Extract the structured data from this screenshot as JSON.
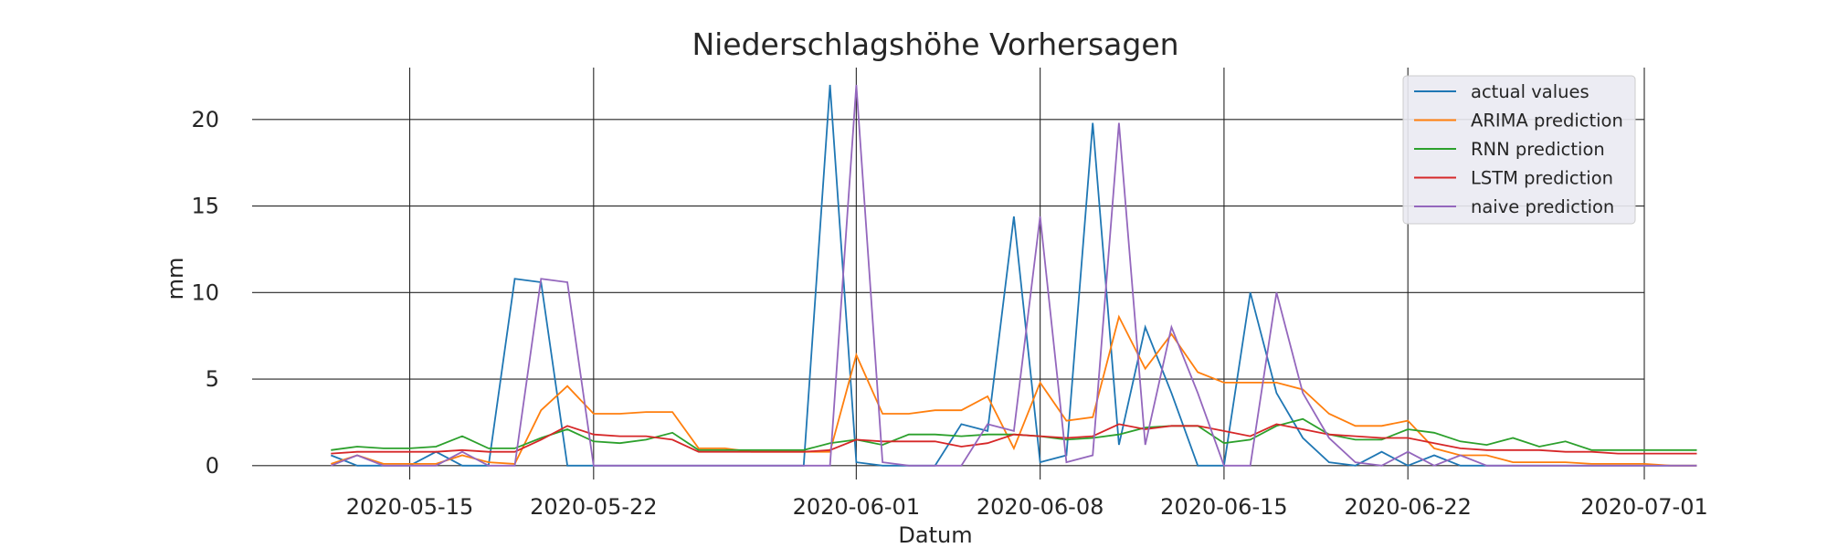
{
  "chart_data": {
    "type": "line",
    "title": "Niederschlagshöhe Vorhersagen",
    "xlabel": "Datum",
    "ylabel": "mm",
    "x_start": "2020-05-12",
    "xlim": [
      "2020-05-09",
      "2020-07-01"
    ],
    "ylim": [
      -0.8,
      23
    ],
    "x_ticks": [
      "2020-05-15",
      "2020-05-22",
      "2020-06-01",
      "2020-06-08",
      "2020-06-15",
      "2020-06-22",
      "2020-07-01"
    ],
    "y_ticks": [
      0,
      5,
      10,
      15,
      20
    ],
    "grid": true,
    "legend_position": "top-right",
    "series": [
      {
        "name": "actual values",
        "color": "#1f77b4",
        "values": [
          0.6,
          0.0,
          0.0,
          0.0,
          0.8,
          0.0,
          0.0,
          10.8,
          10.6,
          0.0,
          0.0,
          0.0,
          0.0,
          0.0,
          0.0,
          0.0,
          0.0,
          0.0,
          0.0,
          22.0,
          0.2,
          0.0,
          0.0,
          0.0,
          2.4,
          2.0,
          14.4,
          0.2,
          0.6,
          19.8,
          1.2,
          8.0,
          4.2,
          0.0,
          0.0,
          10.0,
          4.2,
          1.6,
          0.2,
          0.0,
          0.8,
          0.0,
          0.6,
          0.0,
          0.0,
          0.0,
          0.0,
          0.0,
          0.0,
          0.0,
          0.0,
          0.0,
          0.0
        ]
      },
      {
        "name": "ARIMA prediction",
        "color": "#ff7f0e",
        "values": [
          0.1,
          0.6,
          0.1,
          0.1,
          0.1,
          0.6,
          0.2,
          0.1,
          3.2,
          4.6,
          3.0,
          3.0,
          3.1,
          3.1,
          1.0,
          1.0,
          0.8,
          0.8,
          0.8,
          0.8,
          6.4,
          3.0,
          3.0,
          3.2,
          3.2,
          4.0,
          1.0,
          4.8,
          2.6,
          2.8,
          8.6,
          5.6,
          7.6,
          5.4,
          4.8,
          4.8,
          4.8,
          4.4,
          3.0,
          2.3,
          2.3,
          2.6,
          1.0,
          0.6,
          0.6,
          0.2,
          0.2,
          0.2,
          0.1,
          0.1,
          0.1,
          0.0,
          0.0
        ]
      },
      {
        "name": "RNN prediction",
        "color": "#2ca02c",
        "values": [
          0.9,
          1.1,
          1.0,
          1.0,
          1.1,
          1.7,
          1.0,
          1.0,
          1.6,
          2.1,
          1.4,
          1.3,
          1.5,
          1.9,
          0.9,
          0.9,
          0.9,
          0.9,
          0.9,
          1.3,
          1.5,
          1.2,
          1.8,
          1.8,
          1.7,
          1.8,
          1.8,
          1.7,
          1.5,
          1.6,
          1.8,
          2.2,
          2.3,
          2.3,
          1.3,
          1.5,
          2.3,
          2.7,
          1.8,
          1.5,
          1.5,
          2.1,
          1.9,
          1.4,
          1.2,
          1.6,
          1.1,
          1.4,
          0.9,
          0.9,
          0.9,
          0.9,
          0.9
        ]
      },
      {
        "name": "LSTM prediction",
        "color": "#d62728",
        "values": [
          0.7,
          0.8,
          0.8,
          0.8,
          0.8,
          0.9,
          0.8,
          0.8,
          1.5,
          2.3,
          1.8,
          1.7,
          1.7,
          1.5,
          0.8,
          0.8,
          0.8,
          0.8,
          0.8,
          0.9,
          1.5,
          1.4,
          1.4,
          1.4,
          1.1,
          1.3,
          1.8,
          1.7,
          1.6,
          1.7,
          2.4,
          2.1,
          2.3,
          2.3,
          2.0,
          1.7,
          2.4,
          2.1,
          1.8,
          1.7,
          1.6,
          1.6,
          1.3,
          1.0,
          0.9,
          0.9,
          0.9,
          0.8,
          0.8,
          0.7,
          0.7,
          0.7,
          0.7
        ]
      },
      {
        "name": "naive prediction",
        "color": "#9467bd",
        "values": [
          0.0,
          0.6,
          0.0,
          0.0,
          0.0,
          0.8,
          0.0,
          0.0,
          10.8,
          10.6,
          0.0,
          0.0,
          0.0,
          0.0,
          0.0,
          0.0,
          0.0,
          0.0,
          0.0,
          0.0,
          22.0,
          0.2,
          0.0,
          0.0,
          0.0,
          2.4,
          2.0,
          14.4,
          0.2,
          0.6,
          19.8,
          1.2,
          8.0,
          4.2,
          0.0,
          0.0,
          10.0,
          4.2,
          1.6,
          0.2,
          0.0,
          0.8,
          0.0,
          0.6,
          0.0,
          0.0,
          0.0,
          0.0,
          0.0,
          0.0,
          0.0,
          0.0,
          0.0
        ]
      }
    ]
  }
}
